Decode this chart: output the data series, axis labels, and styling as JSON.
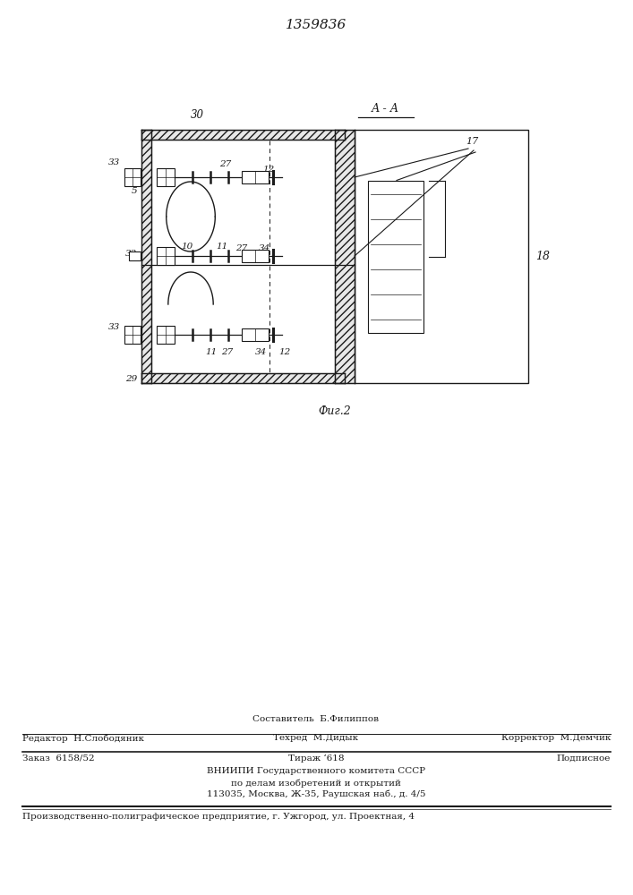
{
  "patent_number": "1359836",
  "fig_caption": "Фиг.2",
  "section_label": "А - А",
  "bg_color": "#ffffff",
  "line_color": "#1a1a1a",
  "footer": {
    "line1_left": "Редактор  Н.Слободяник",
    "line1_center_top": "Составитель  Б.Филиппов",
    "line1_center_bot": "Техред  М.Дидык",
    "line1_right": "Корректор  М.Демчик",
    "line2_left": "Заказ  6158/52",
    "line2_center": "Тираж ʻ618",
    "line2_right": "Подписное",
    "line3": "ВНИИПИ Государственного комитета СССР",
    "line4": "по делам изобретений и открытий",
    "line5": "113035, Москва, Ж-35, Раушская наб., д. 4/5",
    "line6": "Производственно-полиграфическое предприятие, г. Ужгород, ул. Проектная, 4"
  }
}
